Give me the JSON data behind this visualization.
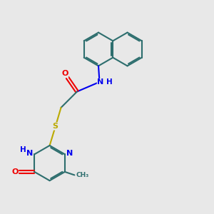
{
  "bg_color": "#e8e8e8",
  "bond_color": "#2d6e6e",
  "bond_width": 1.5,
  "N_color": "#0000ee",
  "O_color": "#ee0000",
  "S_color": "#bbaa00",
  "font_size": 8.0,
  "figsize": [
    3.0,
    3.0
  ],
  "dpi": 100,
  "xlim": [
    0,
    10
  ],
  "ylim": [
    0,
    10
  ]
}
